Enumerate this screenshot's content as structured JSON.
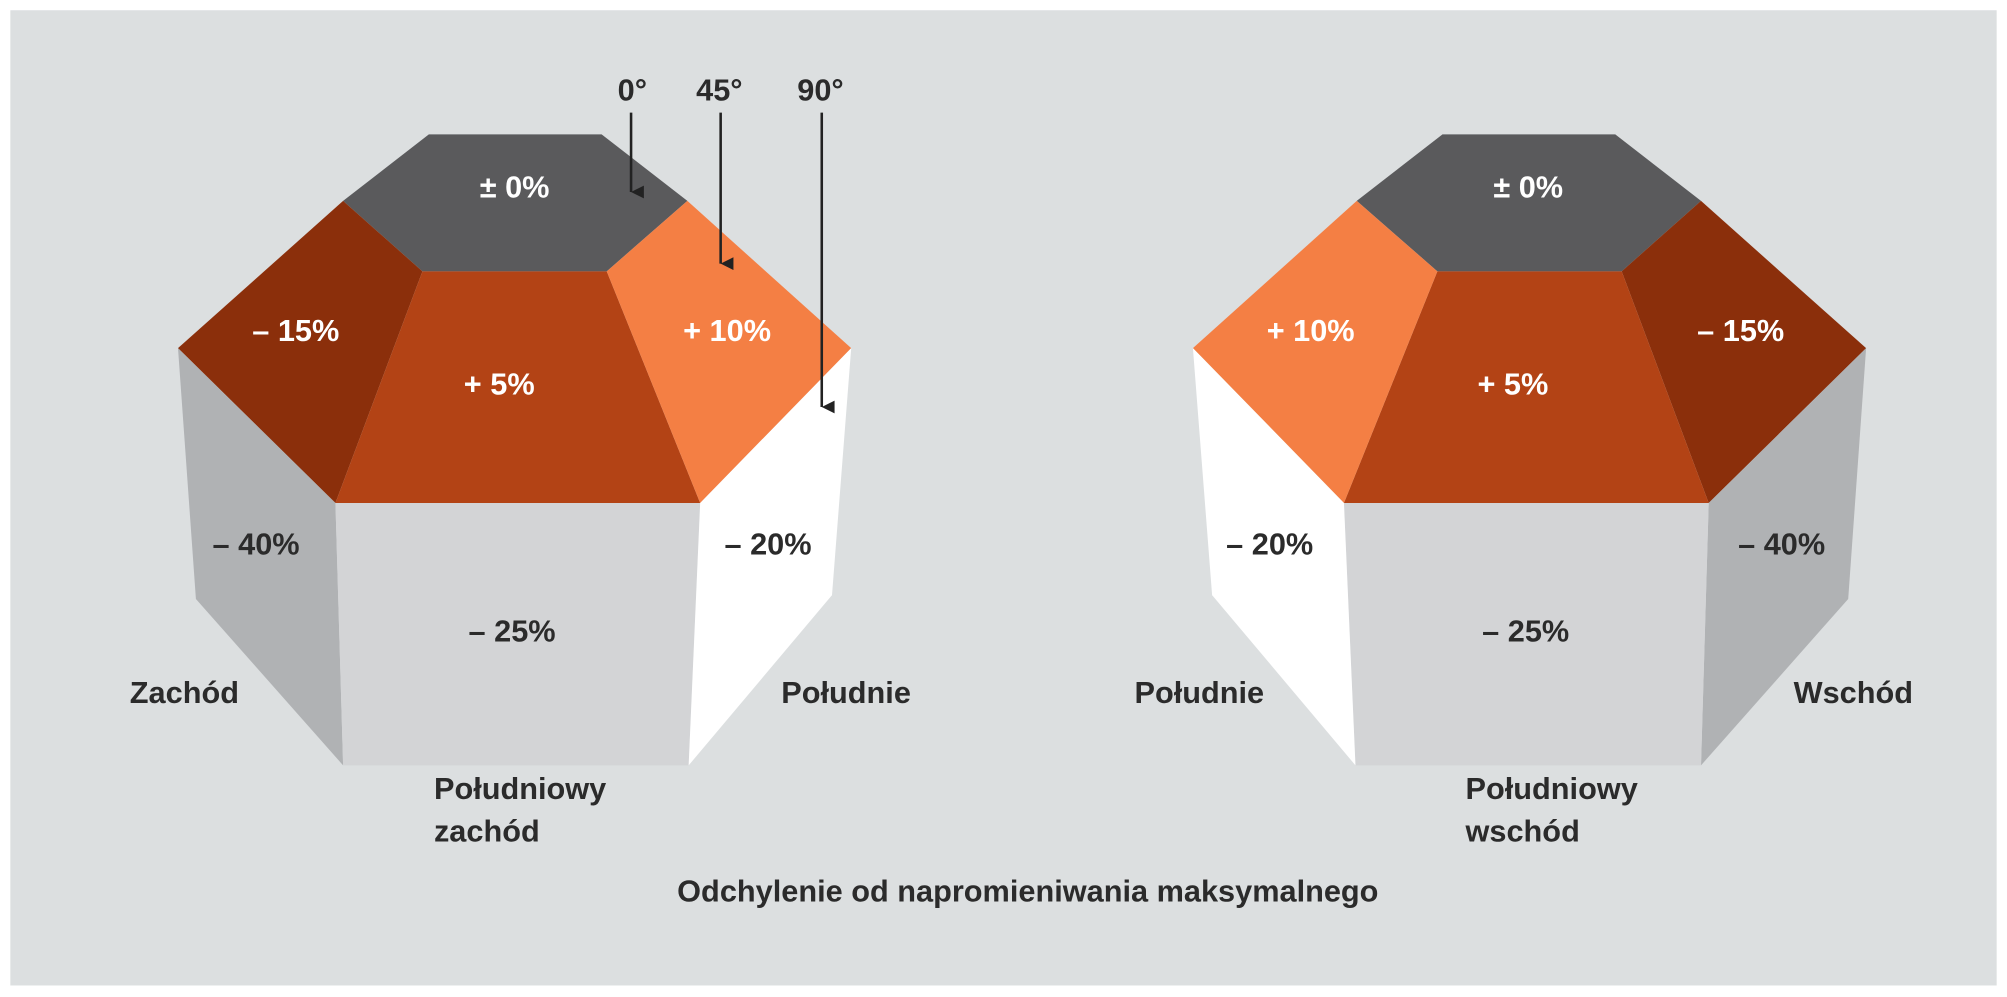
{
  "angles": [
    "0°",
    "45°",
    "90°"
  ],
  "diagrams": [
    {
      "faces": [
        "± 0%",
        "– 15%",
        "+ 5%",
        "+ 10%",
        "– 40%",
        "– 25%",
        "– 20%"
      ],
      "directions": {
        "left": "Zachód",
        "right": "Południe",
        "bottom": [
          "Południowy",
          "zachód"
        ]
      }
    },
    {
      "faces": [
        "± 0%",
        "+ 10%",
        "+ 5%",
        "– 15%",
        "– 20%",
        "– 25%",
        "– 40%"
      ],
      "directions": {
        "left": "Południe",
        "right": "Wschód",
        "bottom": [
          "Południowy",
          "wschód"
        ]
      }
    }
  ],
  "caption": "Odchylenie od napromieniwania maksymalnego"
}
